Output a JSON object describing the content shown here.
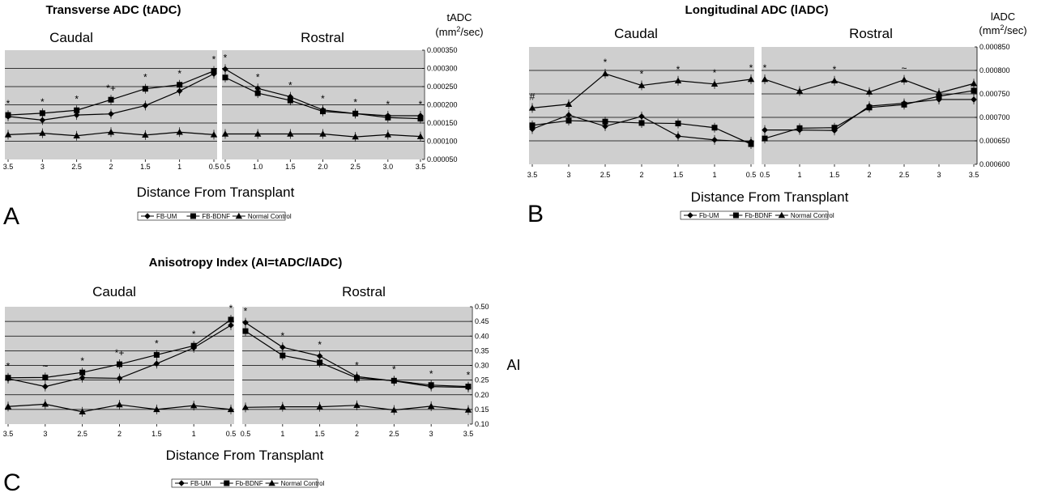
{
  "colors": {
    "panel_bg": "#cfcfcf",
    "line": "#000000",
    "grid": "#000000"
  },
  "legend_markers": [
    "diamond",
    "square",
    "triangle"
  ],
  "chart_data": [
    {
      "id": "A",
      "type": "line",
      "panel_label": "A",
      "title": "Transverse ADC (tADC)",
      "xlabel": "Distance From Transplant",
      "ylabel": [
        "tADC",
        "(mm",
        "2",
        "/sec)"
      ],
      "section_titles": [
        "Caudal",
        "Rostral"
      ],
      "legend": [
        "FB-UM",
        "FB-BDNF",
        "Normal Control"
      ],
      "ylim": [
        5e-05,
        0.00035
      ],
      "yticks": [
        "0.000350",
        "0.000300",
        "0.000250",
        "0.000200",
        "0.000150",
        "0.000100",
        "0.000050"
      ],
      "ytick_values": [
        0.00035,
        0.0003,
        0.00025,
        0.0002,
        0.00015,
        0.0001,
        5e-05
      ],
      "caudal": {
        "x": [
          "3.5",
          "3",
          "2.5",
          "2",
          "1.5",
          "1",
          "0.5"
        ],
        "series": [
          {
            "name": "FB-UM",
            "values": [
              0.000168,
              0.000158,
              0.000172,
              0.000175,
              0.000198,
              0.000238,
              0.000285
            ]
          },
          {
            "name": "FB-BDNF",
            "values": [
              0.000172,
              0.000177,
              0.000185,
              0.000214,
              0.000244,
              0.000255,
              0.000293
            ]
          },
          {
            "name": "Normal Control",
            "values": [
              0.000118,
              0.000122,
              0.000115,
              0.000125,
              0.000117,
              0.000125,
              0.000118
            ]
          }
        ],
        "annotations": [
          "*",
          "*",
          "*",
          "*+",
          "*",
          "*",
          "*"
        ]
      },
      "rostral": {
        "x": [
          "0.5",
          "1.0",
          "1.5",
          "2.0",
          "2.5",
          "3.0",
          "3.5"
        ],
        "series": [
          {
            "name": "FB-UM",
            "values": [
              0.000298,
              0.000245,
              0.000222,
              0.000186,
              0.000176,
              0.00017,
              0.00017
            ]
          },
          {
            "name": "FB-BDNF",
            "values": [
              0.000275,
              0.000232,
              0.000212,
              0.000182,
              0.000176,
              0.000165,
              0.000162
            ]
          },
          {
            "name": "Normal Control",
            "values": [
              0.00012,
              0.00012,
              0.00012,
              0.00012,
              0.000112,
              0.000118,
              0.000113
            ]
          }
        ],
        "annotations": [
          "*",
          "*",
          "*",
          "*",
          "*",
          "*",
          "*"
        ]
      }
    },
    {
      "id": "B",
      "type": "line",
      "panel_label": "B",
      "title": "Longitudinal ADC (lADC)",
      "xlabel": "Distance From Transplant",
      "ylabel": [
        "lADC",
        "(mm",
        "2",
        "/sec)"
      ],
      "section_titles": [
        "Caudal",
        "Rostral"
      ],
      "legend": [
        "Fb-UM",
        "Fb-BDNF",
        "Normal Control"
      ],
      "ylim": [
        0.0006,
        0.00085
      ],
      "yticks": [
        "0.000850",
        "0.000800",
        "0.000750",
        "0.000700",
        "0.000650",
        "0.000600"
      ],
      "ytick_values": [
        0.00085,
        0.0008,
        0.00075,
        0.0007,
        0.00065,
        0.0006
      ],
      "caudal": {
        "x": [
          "3.5",
          "3",
          "2.5",
          "2",
          "1.5",
          "1",
          "0.5"
        ],
        "series": [
          {
            "name": "Fb-UM",
            "values": [
              0.000675,
              0.000705,
              0.000681,
              0.000702,
              0.00066,
              0.000652,
              0.000648
            ]
          },
          {
            "name": "Fb-BDNF",
            "values": [
              0.000683,
              0.000693,
              0.000691,
              0.000688,
              0.000687,
              0.000678,
              0.000643
            ]
          },
          {
            "name": "Normal Control",
            "values": [
              0.00072,
              0.000728,
              0.000793,
              0.000768,
              0.000778,
              0.000771,
              0.000781
            ]
          }
        ],
        "annotations": [
          "#",
          "",
          "*",
          "*",
          "*",
          "*",
          "*"
        ]
      },
      "rostral": {
        "x": [
          "0.5",
          "1",
          "1.5",
          "2",
          "2.5",
          "3",
          "3.5"
        ],
        "series": [
          {
            "name": "Fb-UM",
            "values": [
              0.000673,
              0.000673,
              0.000672,
              0.000724,
              0.00073,
              0.000738,
              0.000738
            ]
          },
          {
            "name": "Fb-BDNF",
            "values": [
              0.000655,
              0.000677,
              0.000678,
              0.000721,
              0.000727,
              0.000745,
              0.000757
            ]
          },
          {
            "name": "Normal Control",
            "values": [
              0.000781,
              0.000756,
              0.000778,
              0.000754,
              0.00078,
              0.000752,
              0.000772
            ]
          }
        ],
        "annotations": [
          "*",
          "",
          "*",
          "",
          "~",
          "",
          ""
        ]
      }
    },
    {
      "id": "C",
      "type": "line",
      "panel_label": "C",
      "title": "Anisotropy Index (AI=tADC/lADC)",
      "xlabel": "Distance From Transplant",
      "ylabel": [
        "AI"
      ],
      "section_titles": [
        "Caudal",
        "Rostral"
      ],
      "legend": [
        "FB-UM",
        "Fb-BDNF",
        "Normal Control"
      ],
      "ylim": [
        0.1,
        0.5
      ],
      "yticks": [
        "0.50",
        "0.45",
        "0.40",
        "0.35",
        "0.30",
        "0.25",
        "0.20",
        "0.15",
        "0.10"
      ],
      "ytick_values": [
        0.5,
        0.45,
        0.4,
        0.35,
        0.3,
        0.25,
        0.2,
        0.15,
        0.1
      ],
      "caudal": {
        "x": [
          "3.5",
          "3",
          "2.5",
          "2",
          "1.5",
          "1",
          "0.5"
        ],
        "series": [
          {
            "name": "FB-UM",
            "values": [
              0.255,
              0.228,
              0.258,
              0.256,
              0.306,
              0.36,
              0.437
            ]
          },
          {
            "name": "Fb-BDNF",
            "values": [
              0.258,
              0.259,
              0.276,
              0.304,
              0.336,
              0.367,
              0.456
            ]
          },
          {
            "name": "Normal Control",
            "values": [
              0.16,
              0.168,
              0.142,
              0.166,
              0.15,
              0.163,
              0.15
            ]
          }
        ],
        "annotations": [
          "*",
          "~",
          "*",
          "*+",
          "*",
          "*",
          "*"
        ]
      },
      "rostral": {
        "x": [
          "0.5",
          "1",
          "1.5",
          "2",
          "2.5",
          "3",
          "3.5"
        ],
        "series": [
          {
            "name": "FB-UM",
            "values": [
              0.446,
              0.362,
              0.332,
              0.262,
              0.247,
              0.228,
              0.225
            ]
          },
          {
            "name": "Fb-BDNF",
            "values": [
              0.417,
              0.334,
              0.31,
              0.257,
              0.248,
              0.233,
              0.228
            ]
          },
          {
            "name": "Normal Control",
            "values": [
              0.157,
              0.159,
              0.159,
              0.164,
              0.148,
              0.161,
              0.148
            ]
          }
        ],
        "annotations": [
          "*",
          "*",
          "*",
          "*",
          "*",
          "*",
          "*"
        ]
      }
    }
  ]
}
